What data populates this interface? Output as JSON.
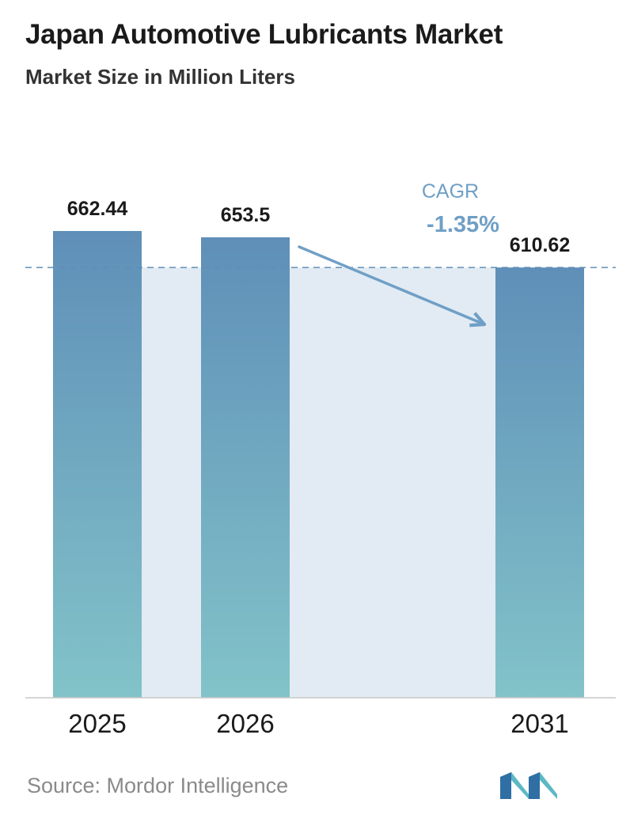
{
  "header": {
    "title": "Japan Automotive Lubricants Market",
    "subtitle": "Market Size in Million Liters"
  },
  "chart_data": {
    "type": "bar",
    "title": "Japan Automotive Lubricants Market",
    "subtitle": "Market Size in Million Liters",
    "categories": [
      "2025",
      "2026",
      "2031"
    ],
    "values": [
      662.44,
      653.5,
      610.62
    ],
    "value_labels": [
      "662.44",
      "653.5",
      "610.62"
    ],
    "reference_line": {
      "value": 610.62,
      "style": "dashed"
    },
    "annotation": {
      "label": "CAGR",
      "value": "-1.35%"
    },
    "axis_visible": false,
    "grid": false
  },
  "footer": {
    "source": "Source:  Mordor Intelligence",
    "logo_icon": "mordor-intelligence-logo-icon"
  },
  "colors": {
    "bar_top": "#5f8fb8",
    "bar_bottom": "#82c3c9",
    "shade": "#e2ebf3",
    "annotation": "#6f9fc6",
    "dashed_line": "#5f8fb8"
  }
}
